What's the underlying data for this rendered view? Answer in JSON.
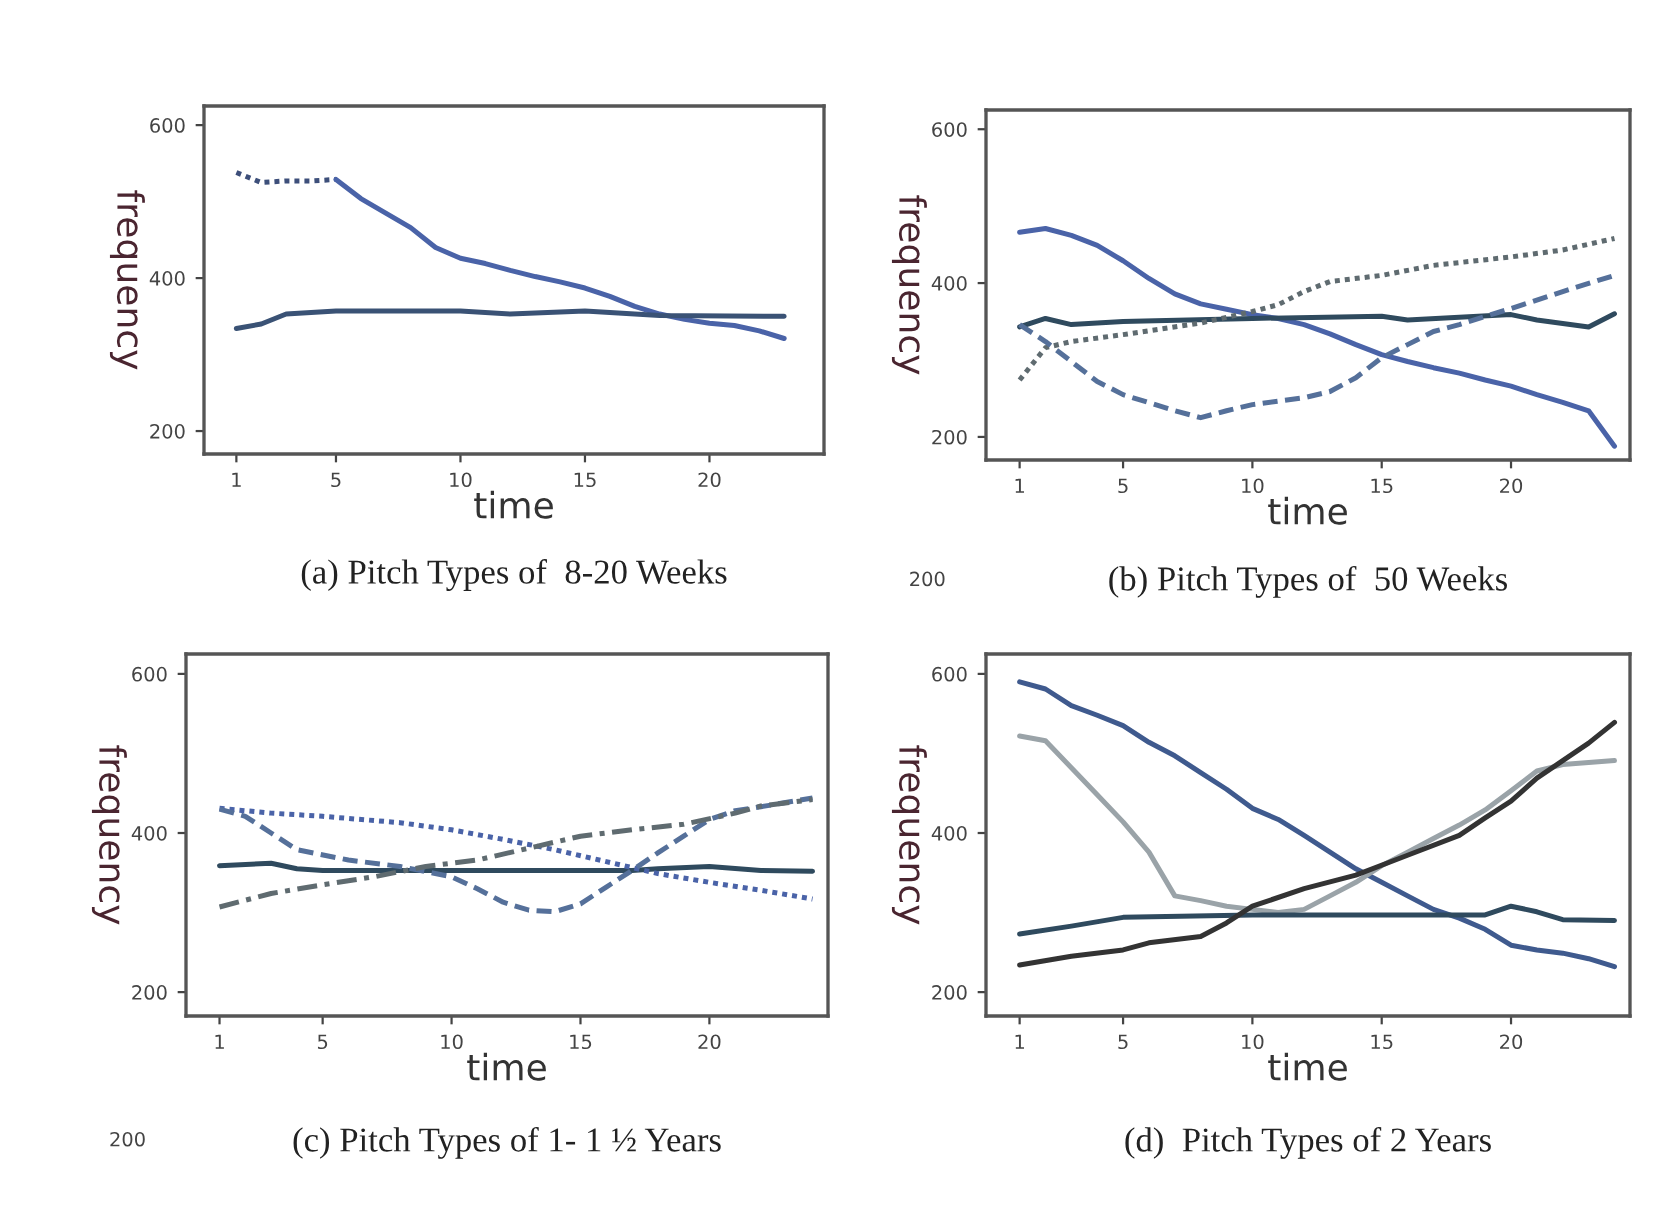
{
  "chart_data": [
    {
      "type": "line",
      "title": "(a) Pitch Types of  8-20 Weeks",
      "xlabel": "time",
      "ylabel": "frequency",
      "xlim": [
        -0.3,
        24.6
      ],
      "ylim": [
        170,
        625
      ],
      "xticks": [
        1,
        5,
        10,
        15,
        20
      ],
      "yticks": [
        200,
        400,
        600
      ],
      "series": [
        {
          "color": "#3d4f7a",
          "line_style": "dotted",
          "x": [
            1,
            2,
            3,
            4,
            5
          ],
          "values": [
            538,
            525,
            527,
            527,
            529
          ]
        },
        {
          "color": "#4a63a8",
          "line_style": "solid",
          "x": [
            5,
            6,
            7,
            8,
            9,
            10,
            11,
            12,
            13,
            14,
            15,
            16,
            17,
            18,
            19,
            20,
            21,
            22,
            23
          ],
          "values": [
            529,
            504,
            485,
            466,
            440,
            426,
            419,
            410,
            402,
            395,
            387,
            376,
            363,
            353,
            346,
            341,
            338,
            331,
            321
          ]
        },
        {
          "color": "#3a5275",
          "line_style": "solid",
          "x": [
            1,
            2,
            3,
            4,
            5,
            10,
            12,
            15,
            18,
            23
          ],
          "values": [
            334,
            340,
            353,
            355,
            357,
            357,
            353,
            357,
            351,
            350
          ]
        }
      ]
    },
    {
      "type": "line",
      "title": "(b) Pitch Types of  50 Weeks",
      "xlabel": "time",
      "ylabel": "frequency",
      "xlim": [
        -0.3,
        24.6
      ],
      "ylim": [
        170,
        625
      ],
      "xticks": [
        1,
        5,
        10,
        15,
        20
      ],
      "yticks": [
        200,
        400,
        600
      ],
      "annotations": [
        "200"
      ],
      "series": [
        {
          "color": "#4a63a8",
          "line_style": "solid",
          "x": [
            1,
            2,
            3,
            4,
            5,
            6,
            7,
            8,
            9,
            10,
            11,
            12,
            13,
            14,
            15,
            16,
            17,
            18,
            19,
            20,
            21,
            22,
            23,
            24
          ],
          "values": [
            466,
            471,
            462,
            449,
            429,
            406,
            386,
            373,
            366,
            359,
            354,
            346,
            334,
            320,
            307,
            298,
            290,
            283,
            274,
            266,
            255,
            245,
            234,
            188
          ]
        },
        {
          "color": "#2f4a5e",
          "line_style": "solid",
          "x": [
            1,
            2,
            3,
            5,
            10,
            15,
            16,
            20,
            21,
            23,
            24
          ],
          "values": [
            343,
            354,
            346,
            350,
            354,
            357,
            352,
            359,
            352,
            343,
            360
          ]
        },
        {
          "color": "#5f6b70",
          "line_style": "dotted",
          "x": [
            1,
            2,
            3,
            5,
            8,
            10,
            11,
            12,
            13,
            15,
            17,
            20,
            22,
            24
          ],
          "values": [
            274,
            316,
            324,
            333,
            348,
            363,
            372,
            389,
            402,
            410,
            423,
            434,
            443,
            458
          ]
        },
        {
          "color": "#55709a",
          "line_style": "dashed",
          "x": [
            1,
            2,
            3,
            4,
            5,
            7,
            8,
            9,
            10,
            12,
            13,
            14,
            15,
            16,
            17,
            18,
            20,
            22,
            24
          ],
          "values": [
            346,
            324,
            298,
            272,
            255,
            234,
            225,
            234,
            242,
            251,
            259,
            277,
            303,
            320,
            337,
            346,
            367,
            389,
            410
          ]
        }
      ]
    },
    {
      "type": "line",
      "title": "(c) Pitch Types of 1- 1 ½ Years",
      "xlabel": "time",
      "ylabel": "frequency",
      "xlim": [
        -0.3,
        24.6
      ],
      "ylim": [
        170,
        625
      ],
      "xticks": [
        1,
        5,
        10,
        15,
        20
      ],
      "yticks": [
        200,
        400,
        600
      ],
      "annotations": [
        "200"
      ],
      "series": [
        {
          "color": "#2f4a5e",
          "line_style": "solid",
          "x": [
            1,
            3,
            4,
            5,
            17,
            18,
            20,
            22,
            24
          ],
          "values": [
            359,
            362,
            355,
            353,
            353,
            355,
            358,
            353,
            352
          ]
        },
        {
          "color": "#4a63a8",
          "line_style": "dotted",
          "x": [
            1,
            3,
            5,
            8,
            10,
            12,
            14,
            16,
            18,
            20,
            22,
            24
          ],
          "values": [
            431,
            425,
            421,
            413,
            404,
            392,
            379,
            364,
            349,
            338,
            328,
            317
          ]
        },
        {
          "color": "#55709a",
          "line_style": "dashed",
          "x": [
            1,
            2,
            3,
            4,
            6,
            8,
            10,
            11,
            12,
            13,
            14,
            15,
            16,
            17,
            18,
            19,
            20,
            21,
            22,
            24
          ],
          "values": [
            430,
            421,
            400,
            379,
            366,
            358,
            345,
            330,
            313,
            303,
            301,
            311,
            332,
            353,
            375,
            396,
            417,
            428,
            433,
            444
          ]
        },
        {
          "color": "#5f6b70",
          "line_style": "dashdot",
          "x": [
            1,
            3,
            5,
            7,
            9,
            11,
            13,
            15,
            17,
            19,
            21,
            22,
            24
          ],
          "values": [
            307,
            324,
            335,
            345,
            358,
            366,
            381,
            396,
            404,
            411,
            425,
            434,
            442
          ]
        }
      ]
    },
    {
      "type": "line",
      "title": "(d)  Pitch Types of 2 Years",
      "xlabel": "time",
      "ylabel": "frequency",
      "xlim": [
        -0.3,
        24.6
      ],
      "ylim": [
        170,
        625
      ],
      "xticks": [
        1,
        5,
        10,
        15,
        20
      ],
      "yticks": [
        200,
        400,
        600
      ],
      "series": [
        {
          "color": "#3f5a8e",
          "line_style": "solid",
          "x": [
            1,
            2,
            3,
            4,
            5,
            6,
            7,
            8,
            9,
            10,
            11,
            12,
            13,
            14,
            15,
            16,
            17,
            18,
            19,
            20,
            21,
            22,
            23,
            24
          ],
          "values": [
            590,
            581,
            560,
            548,
            535,
            514,
            497,
            476,
            455,
            431,
            417,
            397,
            376,
            355,
            338,
            321,
            304,
            293,
            279,
            259,
            253,
            249,
            242,
            232
          ]
        },
        {
          "color": "#9aa3a8",
          "line_style": "solid",
          "x": [
            1,
            2,
            3,
            4,
            5,
            6,
            7,
            8,
            9,
            10,
            11,
            12,
            13,
            14,
            15,
            16,
            17,
            18,
            19,
            20,
            21,
            22,
            24
          ],
          "values": [
            522,
            516,
            482,
            448,
            414,
            376,
            321,
            315,
            308,
            304,
            300,
            304,
            321,
            338,
            359,
            376,
            393,
            410,
            429,
            453,
            478,
            486,
            491
          ]
        },
        {
          "color": "#2f4a5e",
          "line_style": "solid",
          "x": [
            1,
            3,
            5,
            10,
            19,
            20,
            21,
            22,
            24
          ],
          "values": [
            273,
            283,
            294,
            297,
            297,
            308,
            301,
            291,
            290
          ]
        },
        {
          "color": "#333333",
          "line_style": "solid",
          "x": [
            1,
            3,
            5,
            6,
            8,
            9,
            10,
            12,
            14,
            16,
            18,
            19,
            20,
            21,
            22,
            23,
            24
          ],
          "values": [
            234,
            245,
            253,
            262,
            270,
            287,
            308,
            330,
            347,
            372,
            397,
            419,
            440,
            469,
            491,
            513,
            539
          ]
        }
      ]
    }
  ]
}
